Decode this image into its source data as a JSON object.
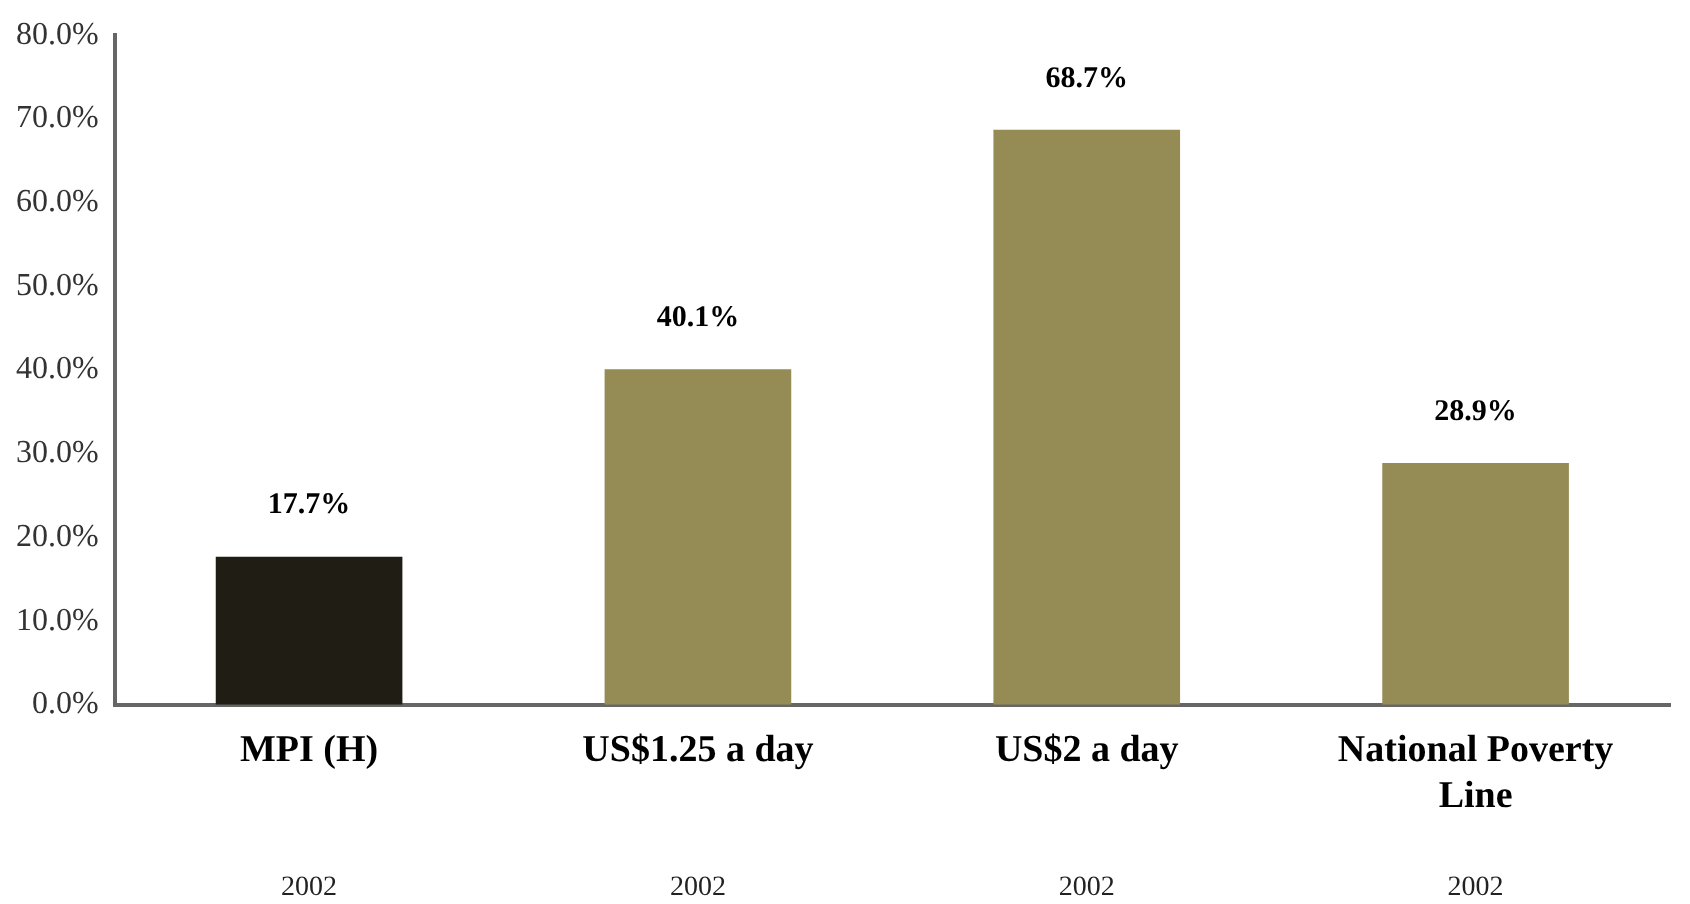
{
  "chart_data": {
    "type": "bar",
    "categories": [
      "MPI (H)",
      "US$1.25 a day",
      "US$2 a day",
      "National Poverty Line"
    ],
    "values": [
      17.7,
      40.1,
      68.7,
      28.9
    ],
    "colors": [
      "#1f1d14",
      "#958b55",
      "#958b55",
      "#958b55"
    ],
    "value_labels": [
      "17.7%",
      "40.1%",
      "68.7%",
      "28.9%"
    ],
    "ylim": [
      0,
      80
    ],
    "yticks": [
      {
        "value": 0,
        "label": "0.0%"
      },
      {
        "value": 10,
        "label": "10.0%"
      },
      {
        "value": 20,
        "label": "20.0%"
      },
      {
        "value": 30,
        "label": "30.0%"
      },
      {
        "value": 40,
        "label": "40.0%"
      },
      {
        "value": 50,
        "label": "50.0%"
      },
      {
        "value": 60,
        "label": "60.0%"
      },
      {
        "value": 70,
        "label": "70.0%"
      },
      {
        "value": 80,
        "label": "80.0%"
      }
    ],
    "annotations": [
      "2002",
      "2002",
      "2002",
      "2002"
    ],
    "grid": false,
    "legend": false
  }
}
